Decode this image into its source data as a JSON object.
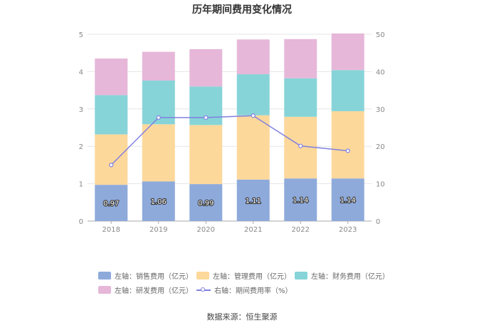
{
  "title": "历年期间费用变化情况",
  "source": "数据来源：恒生聚源",
  "chart_data": {
    "type": "bar",
    "stacked": true,
    "categories": [
      "2018",
      "2019",
      "2020",
      "2021",
      "2022",
      "2023"
    ],
    "series": [
      {
        "name": "左轴：销售费用（亿元）",
        "axis": "left",
        "color": "#8eaadb",
        "values": [
          0.97,
          1.06,
          0.99,
          1.11,
          1.14,
          1.14
        ],
        "labels": [
          "0.97",
          "1.06",
          "0.99",
          "1.11",
          "1.14",
          "1.14"
        ]
      },
      {
        "name": "左轴：管理费用（亿元）",
        "axis": "left",
        "color": "#fdd89b",
        "values": [
          1.35,
          1.53,
          1.58,
          1.72,
          1.65,
          1.8
        ]
      },
      {
        "name": "左轴：财务费用（亿元）",
        "axis": "left",
        "color": "#87d4d8",
        "values": [
          1.05,
          1.17,
          1.03,
          1.1,
          1.03,
          1.1
        ]
      },
      {
        "name": "左轴：研发费用（亿元）",
        "axis": "left",
        "color": "#e6b7d9",
        "values": [
          0.98,
          0.77,
          1.0,
          0.93,
          1.05,
          0.98
        ]
      },
      {
        "name": "右轴：期间费用率（%）",
        "axis": "right",
        "type": "line",
        "color": "#8080e0",
        "values": [
          15.0,
          27.7,
          27.7,
          28.2,
          20.1,
          18.8
        ]
      }
    ],
    "y_left": {
      "min": 0,
      "max": 5,
      "ticks": [
        "0",
        "1",
        "2",
        "3",
        "4",
        "5"
      ]
    },
    "y_right": {
      "min": 0,
      "max": 50,
      "ticks": [
        "0",
        "10",
        "20",
        "30",
        "40",
        "50"
      ]
    },
    "grid": true,
    "legend_position": "bottom"
  }
}
